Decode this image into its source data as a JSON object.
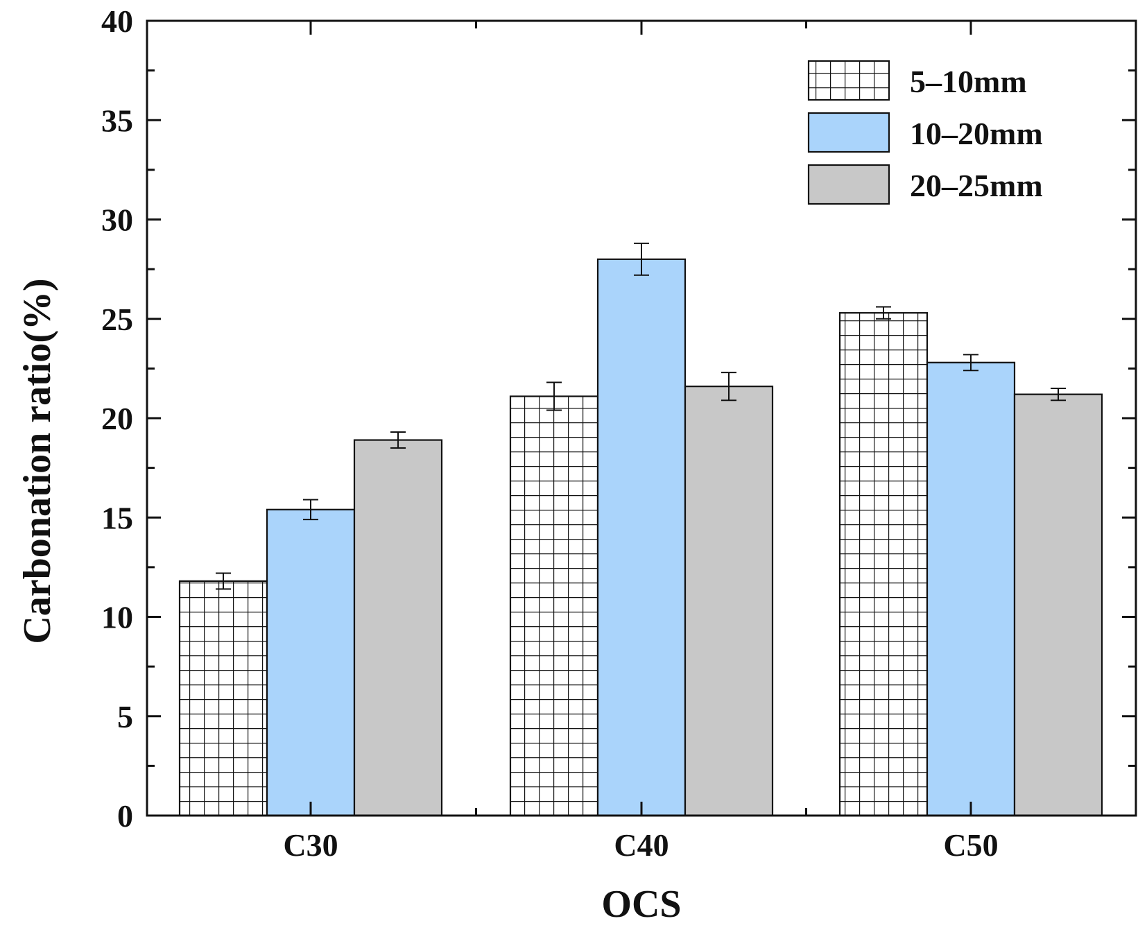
{
  "chart_data": {
    "type": "bar",
    "title": "",
    "xlabel": "OCS",
    "ylabel": "Carbonation ratio(%)",
    "categories": [
      "C30",
      "C40",
      "C50"
    ],
    "ylim": [
      0,
      40
    ],
    "yticks": [
      "0",
      "5",
      "10",
      "15",
      "20",
      "25",
      "30",
      "35",
      "40"
    ],
    "grid": false,
    "legend_position": "top-right",
    "series": [
      {
        "name": "5–10mm",
        "pattern": "grid-hatch",
        "color": "#ffffff",
        "values": [
          11.8,
          21.1,
          25.3
        ],
        "errors": [
          0.4,
          0.7,
          0.3
        ]
      },
      {
        "name": "10–20mm",
        "pattern": "solid",
        "color": "#aad4fb",
        "values": [
          15.4,
          28.0,
          22.8
        ],
        "errors": [
          0.5,
          0.8,
          0.4
        ]
      },
      {
        "name": "20–25mm",
        "pattern": "solid",
        "color": "#c8c8c8",
        "values": [
          18.9,
          21.6,
          21.2
        ],
        "errors": [
          0.4,
          0.7,
          0.3
        ]
      }
    ]
  }
}
